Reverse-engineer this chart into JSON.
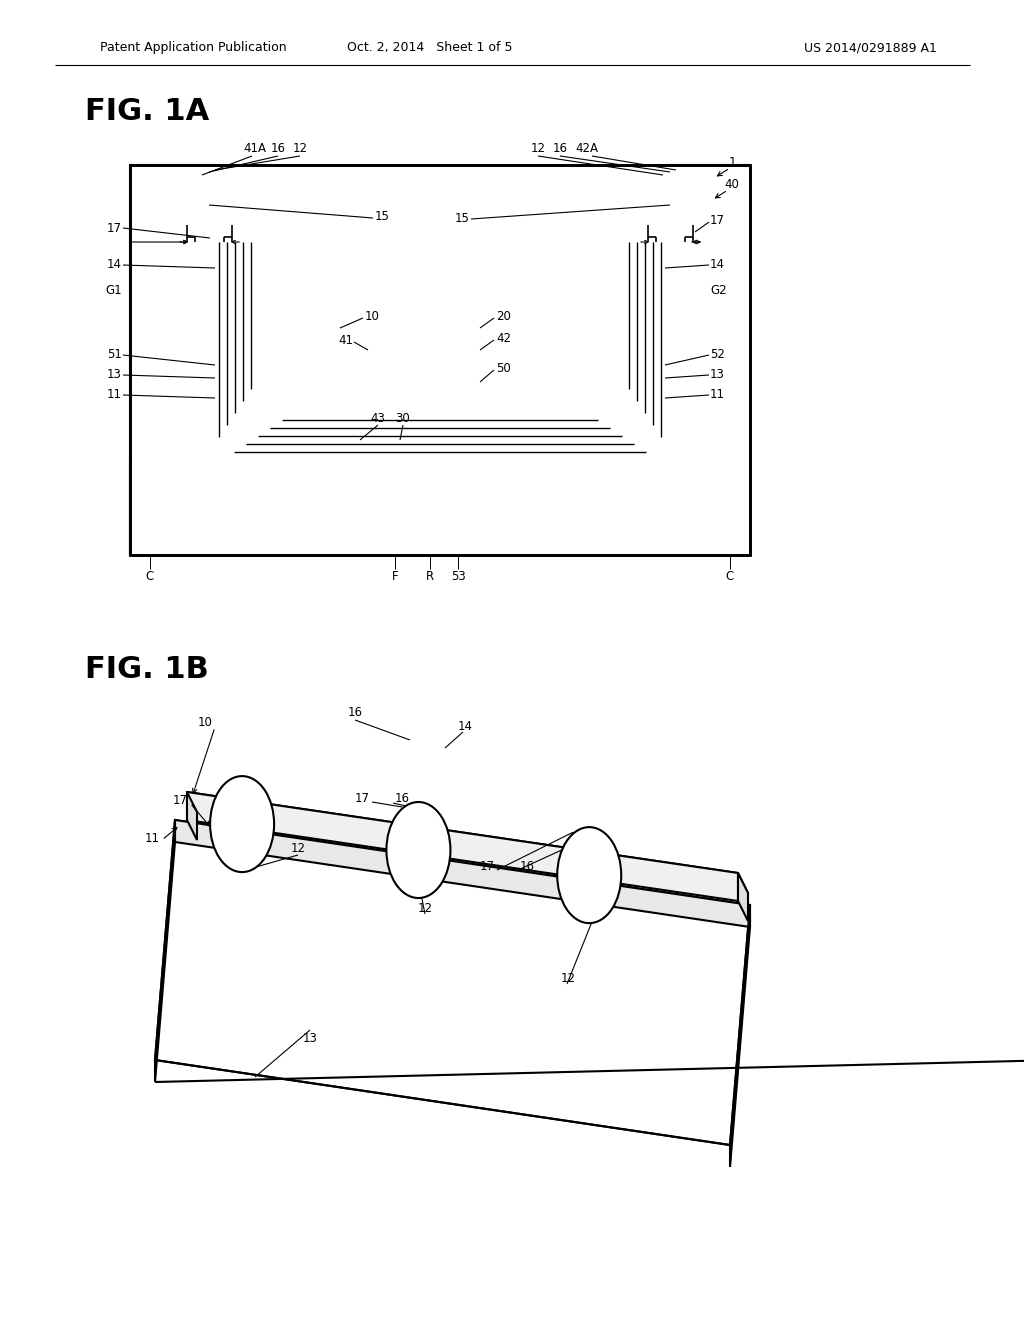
{
  "header_left": "Patent Application Publication",
  "header_middle": "Oct. 2, 2014   Sheet 1 of 5",
  "header_right": "US 2014/0291889 A1",
  "fig1a_label": "FIG. 1A",
  "fig1b_label": "FIG. 1B",
  "bg_color": "#ffffff"
}
